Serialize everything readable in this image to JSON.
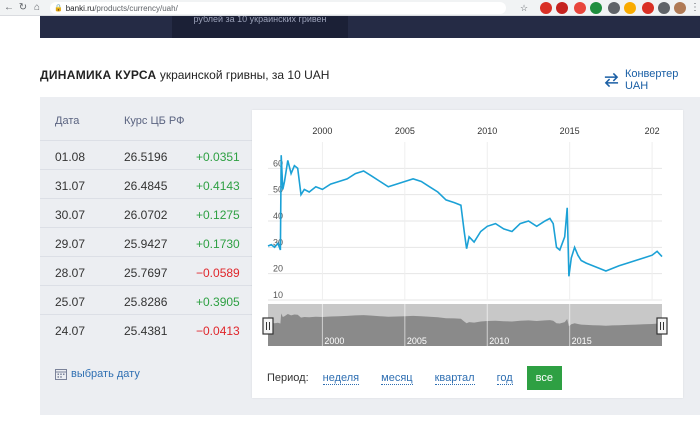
{
  "browser": {
    "url_host": "banki.ru",
    "url_path": "/products/currency/uah/"
  },
  "banner": {
    "text": "рублей за 10 украинских гривен"
  },
  "heading": {
    "title_bold": "ДИНАМИКА КУРСА",
    "title_rest": "украинской гривны, за 10 UAH"
  },
  "converter": {
    "label": "Конвертер UAH"
  },
  "table": {
    "headers": [
      "Дата",
      "Курс ЦБ РФ"
    ],
    "rows": [
      {
        "date": "01.08",
        "rate": "26.5196",
        "change": "+0.0351",
        "dir": "up"
      },
      {
        "date": "31.07",
        "rate": "26.4845",
        "change": "+0.4143",
        "dir": "up"
      },
      {
        "date": "30.07",
        "rate": "26.0702",
        "change": "+0.1275",
        "dir": "up"
      },
      {
        "date": "29.07",
        "rate": "25.9427",
        "change": "+0.1730",
        "dir": "up"
      },
      {
        "date": "28.07",
        "rate": "25.7697",
        "change": "−0.0589",
        "dir": "down"
      },
      {
        "date": "25.07",
        "rate": "25.8286",
        "change": "+0.3905",
        "dir": "up"
      },
      {
        "date": "24.07",
        "rate": "25.4381",
        "change": "−0.0413",
        "dir": "down"
      }
    ],
    "pick_date_label": "выбрать дату"
  },
  "period": {
    "label": "Период:",
    "options": [
      "неделя",
      "месяц",
      "квартал",
      "год"
    ],
    "active": "все"
  },
  "colors": {
    "line": "#1ba1d6",
    "positive": "#2ea043",
    "negative": "#e0262b",
    "link": "#2f6fb2",
    "navigator": "#8a8a8a"
  },
  "chart_data": {
    "type": "line",
    "top_axis_ticks": [
      "2000",
      "2005",
      "2010",
      "2015",
      "202"
    ],
    "navigator_ticks": [
      "2000",
      "2005",
      "2010",
      "2015"
    ],
    "y_ticks": [
      10,
      20,
      30,
      40,
      50,
      60
    ],
    "ylim": [
      10,
      70
    ],
    "xlim": [
      1996.7,
      2020.6
    ],
    "grid": true,
    "series": [
      {
        "values": [
          [
            1996.7,
            30.5
          ],
          [
            1996.9,
            31
          ],
          [
            1997.1,
            30
          ],
          [
            1997.3,
            31.5
          ],
          [
            1997.45,
            29
          ],
          [
            1997.5,
            65
          ],
          [
            1997.6,
            52
          ],
          [
            1997.7,
            55
          ],
          [
            1997.9,
            63
          ],
          [
            1998.1,
            58
          ],
          [
            1998.3,
            61
          ],
          [
            1998.5,
            60
          ],
          [
            1998.7,
            50
          ],
          [
            1998.9,
            52
          ],
          [
            1999.2,
            51
          ],
          [
            1999.6,
            53
          ],
          [
            2000.0,
            52
          ],
          [
            2000.5,
            54
          ],
          [
            2001.0,
            55
          ],
          [
            2001.5,
            56
          ],
          [
            2002.0,
            58
          ],
          [
            2002.5,
            59
          ],
          [
            2003.0,
            57
          ],
          [
            2003.5,
            55
          ],
          [
            2004.0,
            53
          ],
          [
            2004.5,
            54
          ],
          [
            2005.0,
            55
          ],
          [
            2005.5,
            56
          ],
          [
            2006.0,
            55
          ],
          [
            2006.5,
            53
          ],
          [
            2007.0,
            51
          ],
          [
            2007.5,
            48
          ],
          [
            2008.0,
            47
          ],
          [
            2008.4,
            46
          ],
          [
            2008.6,
            36
          ],
          [
            2008.75,
            29.5
          ],
          [
            2008.9,
            34
          ],
          [
            2009.2,
            32
          ],
          [
            2009.6,
            36
          ],
          [
            2010.0,
            38
          ],
          [
            2010.5,
            39
          ],
          [
            2011.0,
            37
          ],
          [
            2011.5,
            36
          ],
          [
            2012.0,
            39
          ],
          [
            2012.5,
            40
          ],
          [
            2013.0,
            38
          ],
          [
            2013.5,
            40
          ],
          [
            2013.8,
            41
          ],
          [
            2014.0,
            39
          ],
          [
            2014.2,
            30
          ],
          [
            2014.4,
            29
          ],
          [
            2014.7,
            34
          ],
          [
            2014.85,
            45
          ],
          [
            2014.95,
            19
          ],
          [
            2015.1,
            26
          ],
          [
            2015.3,
            30
          ],
          [
            2015.5,
            27
          ],
          [
            2015.7,
            25
          ],
          [
            2016.0,
            24
          ],
          [
            2016.4,
            23
          ],
          [
            2016.8,
            22
          ],
          [
            2017.2,
            21
          ],
          [
            2017.6,
            22
          ],
          [
            2018.0,
            23
          ],
          [
            2018.5,
            24
          ],
          [
            2019.0,
            25
          ],
          [
            2019.5,
            26
          ],
          [
            2020.0,
            27
          ],
          [
            2020.3,
            28.5
          ],
          [
            2020.6,
            26.5
          ]
        ]
      }
    ]
  }
}
